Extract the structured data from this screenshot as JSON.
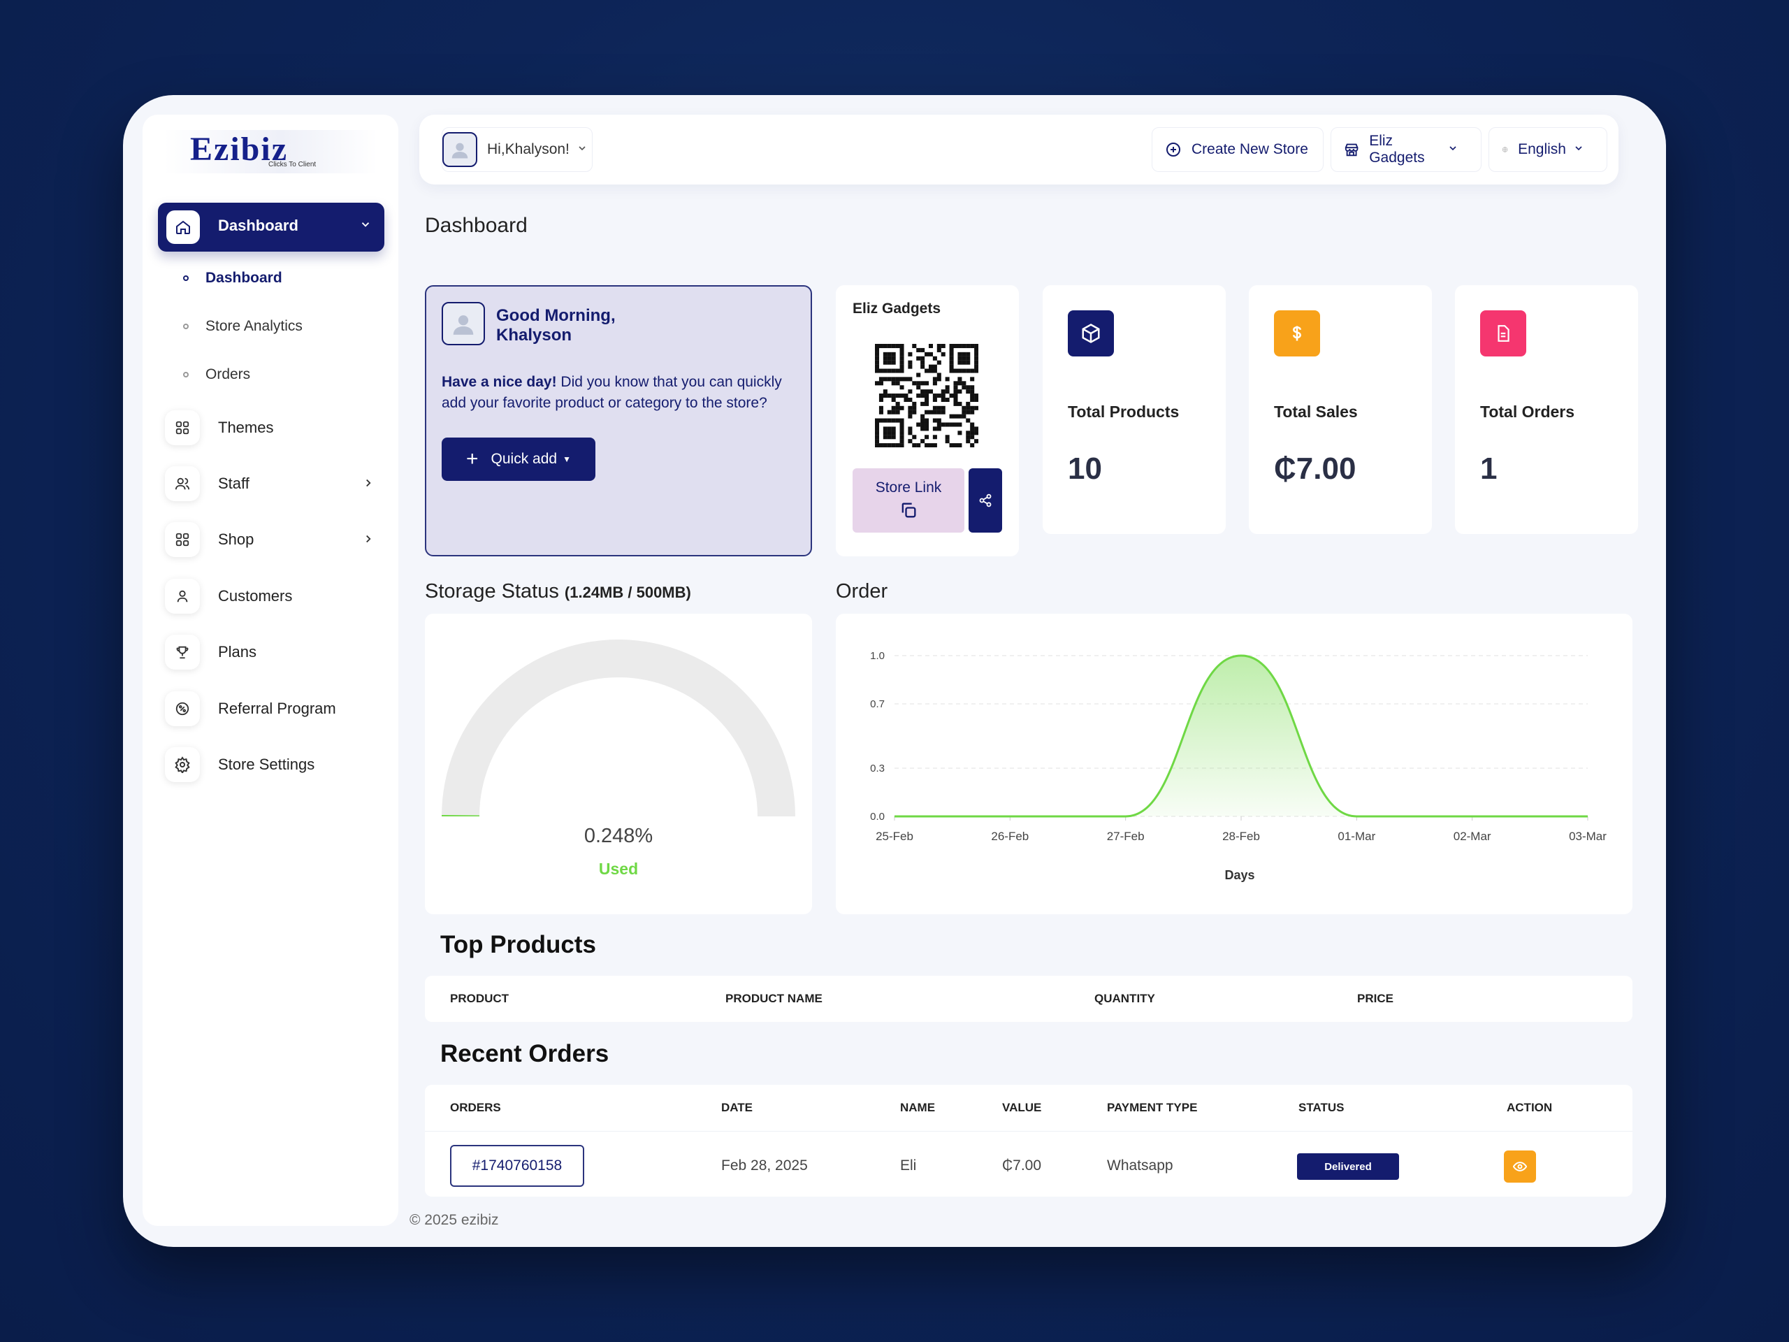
{
  "brand": {
    "logo_text": "Ezibiz",
    "tagline": "Clicks To Client"
  },
  "sidebar": {
    "active": {
      "label": "Dashboard"
    },
    "subitems": [
      {
        "label": "Dashboard",
        "active": true
      },
      {
        "label": "Store Analytics",
        "active": false
      },
      {
        "label": "Orders",
        "active": false
      }
    ],
    "items": [
      {
        "label": "Themes",
        "icon": "grid-icon"
      },
      {
        "label": "Staff",
        "icon": "users-icon",
        "has_children": true
      },
      {
        "label": "Shop",
        "icon": "grid-icon",
        "has_children": true
      },
      {
        "label": "Customers",
        "icon": "user-icon"
      },
      {
        "label": "Plans",
        "icon": "trophy-icon"
      },
      {
        "label": "Referral Program",
        "icon": "referral-icon"
      },
      {
        "label": "Store Settings",
        "icon": "gear-icon"
      }
    ]
  },
  "topbar": {
    "greeting": "Hi,Khalyson!",
    "create_store": "Create New Store",
    "store_select": "Eliz Gadgets",
    "language": "English"
  },
  "page": {
    "title": "Dashboard"
  },
  "welcome": {
    "hello": "Good Morning,",
    "name": "Khalyson",
    "msg_bold": "Have a nice day!",
    "msg_rest": " Did you know that you can quickly add your favorite product or category to the store?",
    "quick_add": "Quick add"
  },
  "store_card": {
    "name": "Eliz Gadgets",
    "store_link": "Store Link"
  },
  "stats": [
    {
      "label": "Total Products",
      "value": "10",
      "color": "#141c6e",
      "icon": "box-icon"
    },
    {
      "label": "Total Sales",
      "value": "₵7.00",
      "color": "#f8a21a",
      "icon": "dollar-icon"
    },
    {
      "label": "Total Orders",
      "value": "1",
      "color": "#f5366f",
      "icon": "document-icon"
    }
  ],
  "storage": {
    "title": "Storage Status",
    "subtitle": "(1.24MB / 500MB)",
    "percent": "0.248%",
    "percent_value": 0.00248,
    "used_label": "Used"
  },
  "order_section": {
    "title": "Order"
  },
  "chart_data": {
    "type": "area",
    "x": [
      "25-Feb",
      "26-Feb",
      "27-Feb",
      "28-Feb",
      "01-Mar",
      "02-Mar",
      "03-Mar"
    ],
    "values": [
      0,
      0,
      0,
      1,
      0,
      0,
      0
    ],
    "yticks": [
      "0.0",
      "0.3",
      "0.7",
      "1.0"
    ],
    "ylim": [
      0,
      1
    ],
    "xlabel": "Days",
    "ylabel": "",
    "grid": true,
    "color": "#6fd845"
  },
  "top_products": {
    "title": "Top Products",
    "columns": [
      "PRODUCT",
      "PRODUCT NAME",
      "QUANTITY",
      "PRICE"
    ]
  },
  "recent_orders": {
    "title": "Recent Orders",
    "columns": [
      "ORDERS",
      "DATE",
      "NAME",
      "VALUE",
      "PAYMENT TYPE",
      "STATUS",
      "ACTION"
    ],
    "rows": [
      {
        "order": "#1740760158",
        "date": "Feb 28, 2025",
        "name": "Eli",
        "value": "₵7.00",
        "payment": "Whatsapp",
        "status": "Delivered"
      }
    ]
  },
  "footer": {
    "text": "© 2025 ezibiz"
  }
}
